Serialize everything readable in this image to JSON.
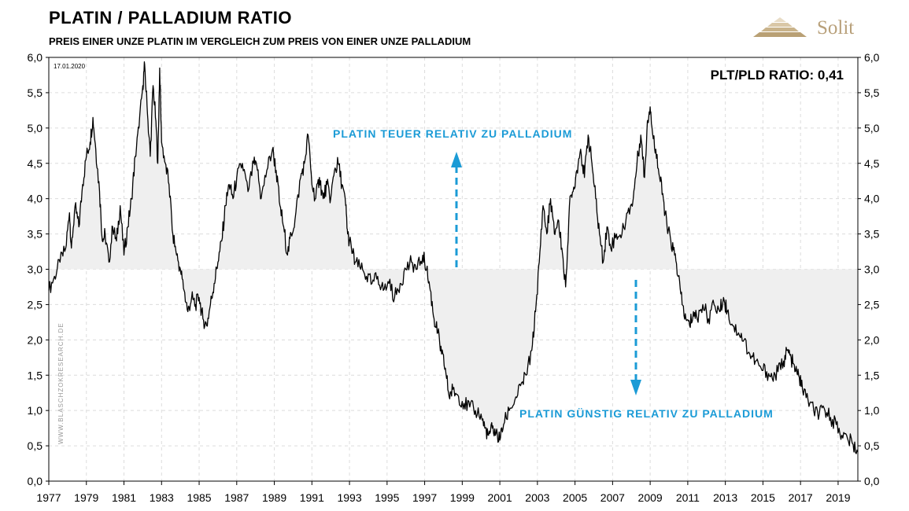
{
  "header": {
    "title": "PLATIN / PALLADIUM RATIO",
    "subtitle": "PREIS EINER UNZE  PLATIN IM VERGLEICH ZUM PREIS VON EINER UNZE PALLADIUM"
  },
  "logo": {
    "text": "Solit",
    "color": "#b8a07a"
  },
  "colors": {
    "line": "#000000",
    "fill": "#efefef",
    "annotation": "#1b9bd6",
    "grid": "#d9d9d9"
  },
  "chart_data": {
    "type": "line",
    "title": "PLATIN / PALLADIUM RATIO",
    "subtitle": "PREIS EINER UNZE  PLATIN IM VERGLEICH ZUM PREIS VON EINER UNZE PALLADIUM",
    "date_label": "17.01.2020",
    "ratio_label": "PLT/PLD RATIO: 0,41",
    "watermark": "WWW.BLASCHZOKRESEARCH.DE",
    "baseline": 3.0,
    "xlim": [
      1977,
      2020.05
    ],
    "ylim": [
      0,
      6
    ],
    "x_ticks": [
      1977,
      1979,
      1981,
      1983,
      1985,
      1987,
      1989,
      1991,
      1993,
      1995,
      1997,
      1999,
      2001,
      2003,
      2005,
      2007,
      2009,
      2011,
      2013,
      2015,
      2017,
      2019
    ],
    "y_ticks": [
      "0,0",
      "0,5",
      "1,0",
      "1,5",
      "2,0",
      "2,5",
      "3,0",
      "3,5",
      "4,0",
      "4,5",
      "5,0",
      "5,5",
      "6,0"
    ],
    "y_tick_values": [
      0,
      0.5,
      1,
      1.5,
      2,
      2.5,
      3,
      3.5,
      4,
      4.5,
      5,
      5.5,
      6
    ],
    "grid": true,
    "annotations": [
      {
        "text": "PLATIN  TEUER  RELATIV  ZU  PALLADIUM",
        "arrow": "up"
      },
      {
        "text": "PLATIN  GÜNSTIG  RELATIV  ZU  PALLADIUM",
        "arrow": "down"
      }
    ],
    "series": [
      {
        "values": [
          [
            1977.0,
            2.7
          ],
          [
            1977.3,
            2.9
          ],
          [
            1977.6,
            3.1
          ],
          [
            1977.9,
            3.3
          ],
          [
            1978.1,
            3.8
          ],
          [
            1978.2,
            3.3
          ],
          [
            1978.4,
            3.9
          ],
          [
            1978.6,
            3.6
          ],
          [
            1978.8,
            4.2
          ],
          [
            1979.0,
            4.6
          ],
          [
            1979.2,
            4.8
          ],
          [
            1979.35,
            5.15
          ],
          [
            1979.5,
            4.7
          ],
          [
            1979.7,
            4.1
          ],
          [
            1979.85,
            3.4
          ],
          [
            1980.0,
            3.5
          ],
          [
            1980.2,
            3.1
          ],
          [
            1980.4,
            3.6
          ],
          [
            1980.6,
            3.4
          ],
          [
            1980.8,
            3.9
          ],
          [
            1981.0,
            3.2
          ],
          [
            1981.2,
            3.6
          ],
          [
            1981.4,
            4.0
          ],
          [
            1981.6,
            4.6
          ],
          [
            1981.8,
            5.0
          ],
          [
            1982.0,
            5.6
          ],
          [
            1982.1,
            5.9
          ],
          [
            1982.25,
            5.2
          ],
          [
            1982.4,
            4.6
          ],
          [
            1982.55,
            5.6
          ],
          [
            1982.7,
            5.1
          ],
          [
            1982.8,
            4.5
          ],
          [
            1982.9,
            5.85
          ],
          [
            1983.0,
            4.8
          ],
          [
            1983.2,
            4.5
          ],
          [
            1983.4,
            4.2
          ],
          [
            1983.6,
            3.5
          ],
          [
            1983.8,
            3.2
          ],
          [
            1984.0,
            3.0
          ],
          [
            1984.2,
            2.7
          ],
          [
            1984.4,
            2.4
          ],
          [
            1984.6,
            2.6
          ],
          [
            1984.8,
            2.5
          ],
          [
            1985.0,
            2.6
          ],
          [
            1985.2,
            2.3
          ],
          [
            1985.4,
            2.2
          ],
          [
            1985.6,
            2.5
          ],
          [
            1985.8,
            2.8
          ],
          [
            1986.0,
            3.1
          ],
          [
            1986.2,
            3.4
          ],
          [
            1986.4,
            3.9
          ],
          [
            1986.6,
            4.2
          ],
          [
            1986.8,
            4.0
          ],
          [
            1987.0,
            4.3
          ],
          [
            1987.3,
            4.5
          ],
          [
            1987.6,
            4.1
          ],
          [
            1987.9,
            4.5
          ],
          [
            1988.1,
            4.4
          ],
          [
            1988.3,
            4.0
          ],
          [
            1988.6,
            4.4
          ],
          [
            1988.9,
            4.7
          ],
          [
            1989.1,
            4.4
          ],
          [
            1989.3,
            3.9
          ],
          [
            1989.5,
            3.6
          ],
          [
            1989.7,
            3.2
          ],
          [
            1989.9,
            3.5
          ],
          [
            1990.1,
            3.7
          ],
          [
            1990.4,
            4.3
          ],
          [
            1990.6,
            4.5
          ],
          [
            1990.8,
            4.9
          ],
          [
            1991.0,
            4.2
          ],
          [
            1991.2,
            4.0
          ],
          [
            1991.4,
            4.3
          ],
          [
            1991.6,
            4.0
          ],
          [
            1991.8,
            4.2
          ],
          [
            1992.0,
            4.0
          ],
          [
            1992.2,
            4.4
          ],
          [
            1992.4,
            4.5
          ],
          [
            1992.6,
            4.2
          ],
          [
            1992.8,
            3.9
          ],
          [
            1992.9,
            3.5
          ],
          [
            1993.1,
            3.3
          ],
          [
            1993.3,
            3.1
          ],
          [
            1993.6,
            3.0
          ],
          [
            1993.9,
            2.9
          ],
          [
            1994.2,
            2.8
          ],
          [
            1994.5,
            2.9
          ],
          [
            1994.8,
            2.7
          ],
          [
            1995.1,
            2.8
          ],
          [
            1995.4,
            2.6
          ],
          [
            1995.7,
            2.8
          ],
          [
            1996.0,
            3.0
          ],
          [
            1996.3,
            3.1
          ],
          [
            1996.6,
            3.0
          ],
          [
            1996.9,
            3.2
          ],
          [
            1997.1,
            3.0
          ],
          [
            1997.3,
            2.7
          ],
          [
            1997.5,
            2.3
          ],
          [
            1997.7,
            2.1
          ],
          [
            1997.9,
            1.8
          ],
          [
            1998.1,
            1.6
          ],
          [
            1998.3,
            1.2
          ],
          [
            1998.5,
            1.3
          ],
          [
            1998.8,
            1.2
          ],
          [
            1999.1,
            1.1
          ],
          [
            1999.4,
            1.05
          ],
          [
            1999.7,
            1.0
          ],
          [
            2000.0,
            0.95
          ],
          [
            2000.2,
            0.75
          ],
          [
            2000.4,
            0.65
          ],
          [
            2000.6,
            0.75
          ],
          [
            2000.8,
            0.68
          ],
          [
            2001.0,
            0.58
          ],
          [
            2001.2,
            0.8
          ],
          [
            2001.5,
            1.0
          ],
          [
            2001.8,
            1.15
          ],
          [
            2002.1,
            1.35
          ],
          [
            2002.4,
            1.5
          ],
          [
            2002.7,
            1.85
          ],
          [
            2002.9,
            2.4
          ],
          [
            2003.1,
            3.1
          ],
          [
            2003.3,
            3.9
          ],
          [
            2003.5,
            3.5
          ],
          [
            2003.7,
            4.0
          ],
          [
            2003.9,
            3.5
          ],
          [
            2004.1,
            3.7
          ],
          [
            2004.3,
            3.3
          ],
          [
            2004.5,
            2.75
          ],
          [
            2004.7,
            3.9
          ],
          [
            2004.9,
            4.1
          ],
          [
            2005.1,
            4.4
          ],
          [
            2005.3,
            4.7
          ],
          [
            2005.5,
            4.3
          ],
          [
            2005.7,
            4.9
          ],
          [
            2005.9,
            4.5
          ],
          [
            2006.1,
            4.0
          ],
          [
            2006.3,
            3.5
          ],
          [
            2006.5,
            3.1
          ],
          [
            2006.7,
            3.6
          ],
          [
            2006.9,
            3.3
          ],
          [
            2007.2,
            3.5
          ],
          [
            2007.5,
            3.5
          ],
          [
            2007.8,
            3.8
          ],
          [
            2008.1,
            4.0
          ],
          [
            2008.3,
            4.5
          ],
          [
            2008.5,
            4.9
          ],
          [
            2008.7,
            4.3
          ],
          [
            2008.85,
            5.1
          ],
          [
            2009.0,
            5.3
          ],
          [
            2009.1,
            5.0
          ],
          [
            2009.3,
            4.7
          ],
          [
            2009.5,
            4.3
          ],
          [
            2009.7,
            4.0
          ],
          [
            2009.9,
            3.6
          ],
          [
            2010.1,
            3.4
          ],
          [
            2010.3,
            3.2
          ],
          [
            2010.5,
            2.9
          ],
          [
            2010.7,
            2.5
          ],
          [
            2010.9,
            2.3
          ],
          [
            2011.1,
            2.2
          ],
          [
            2011.3,
            2.4
          ],
          [
            2011.5,
            2.3
          ],
          [
            2011.8,
            2.5
          ],
          [
            2012.1,
            2.3
          ],
          [
            2012.4,
            2.5
          ],
          [
            2012.7,
            2.4
          ],
          [
            2012.9,
            2.6
          ],
          [
            2013.1,
            2.4
          ],
          [
            2013.4,
            2.2
          ],
          [
            2013.7,
            2.1
          ],
          [
            2014.0,
            2.0
          ],
          [
            2014.3,
            1.8
          ],
          [
            2014.6,
            1.7
          ],
          [
            2014.9,
            1.6
          ],
          [
            2015.2,
            1.55
          ],
          [
            2015.5,
            1.45
          ],
          [
            2015.8,
            1.55
          ],
          [
            2016.1,
            1.7
          ],
          [
            2016.3,
            1.85
          ],
          [
            2016.5,
            1.75
          ],
          [
            2016.7,
            1.55
          ],
          [
            2016.9,
            1.5
          ],
          [
            2017.1,
            1.3
          ],
          [
            2017.4,
            1.15
          ],
          [
            2017.7,
            1.0
          ],
          [
            2018.0,
            0.95
          ],
          [
            2018.3,
            1.0
          ],
          [
            2018.6,
            0.9
          ],
          [
            2018.9,
            0.8
          ],
          [
            2019.2,
            0.65
          ],
          [
            2019.5,
            0.6
          ],
          [
            2019.8,
            0.52
          ],
          [
            2020.05,
            0.41
          ]
        ]
      }
    ]
  }
}
